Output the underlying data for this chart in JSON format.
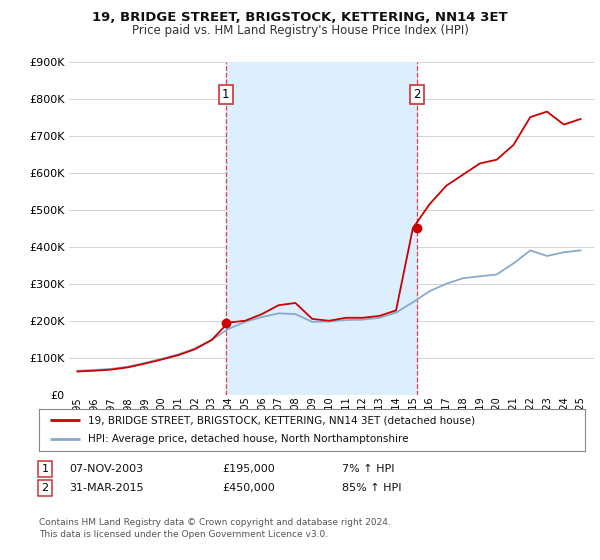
{
  "title": "19, BRIDGE STREET, BRIGSTOCK, KETTERING, NN14 3ET",
  "subtitle": "Price paid vs. HM Land Registry's House Price Index (HPI)",
  "hpi_label": "HPI: Average price, detached house, North Northamptonshire",
  "price_label": "19, BRIDGE STREET, BRIGSTOCK, KETTERING, NN14 3ET (detached house)",
  "footer": "Contains HM Land Registry data © Crown copyright and database right 2024.\nThis data is licensed under the Open Government Licence v3.0.",
  "marker1_value": 195000,
  "marker2_value": 450000,
  "vline1_x": 2003.85,
  "vline2_x": 2015.25,
  "marker1_x": 2003.85,
  "marker2_x": 2015.25,
  "price_color": "#cc0000",
  "hpi_color": "#88aacc",
  "vline_color": "#dd4444",
  "background_color": "#ffffff",
  "plot_bg_color": "#ffffff",
  "grid_color": "#cccccc",
  "shade_color": "#ddeeff",
  "ylim": [
    0,
    900000
  ],
  "yticks": [
    0,
    100000,
    200000,
    300000,
    400000,
    500000,
    600000,
    700000,
    800000,
    900000
  ],
  "xlim_left": 1994.5,
  "xlim_right": 2025.8,
  "years": [
    1995,
    1996,
    1997,
    1998,
    1999,
    2000,
    2001,
    2002,
    2003,
    2004,
    2005,
    2006,
    2007,
    2008,
    2009,
    2010,
    2011,
    2012,
    2013,
    2014,
    2015,
    2016,
    2017,
    2018,
    2019,
    2020,
    2021,
    2022,
    2023,
    2024,
    2025
  ],
  "hpi_values": [
    65000,
    67000,
    70000,
    76000,
    86000,
    97000,
    109000,
    125000,
    148000,
    178000,
    197000,
    210000,
    220000,
    218000,
    197000,
    198000,
    202000,
    203000,
    208000,
    222000,
    250000,
    280000,
    300000,
    315000,
    320000,
    325000,
    355000,
    390000,
    375000,
    385000,
    390000
  ],
  "price_values": [
    63000,
    65000,
    68000,
    74000,
    84000,
    95000,
    107000,
    123000,
    148000,
    195000,
    200000,
    218000,
    242000,
    248000,
    205000,
    200000,
    208000,
    208000,
    213000,
    228000,
    450000,
    515000,
    565000,
    595000,
    625000,
    635000,
    675000,
    750000,
    765000,
    730000,
    745000
  ]
}
